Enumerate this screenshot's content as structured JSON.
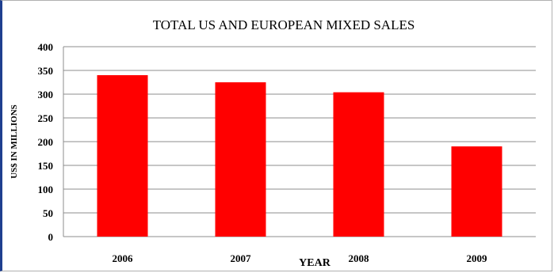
{
  "chart_data": {
    "type": "bar",
    "title": "TOTAL US AND EUROPEAN MIXED SALES",
    "xlabel": "YEAR",
    "ylabel": "US$ IN MILLIONS",
    "categories": [
      "2006",
      "2007",
      "2008",
      "2009"
    ],
    "values": [
      340,
      325,
      304,
      190
    ],
    "ylim": [
      0,
      400
    ],
    "yticks": [
      "0",
      "50",
      "100",
      "150",
      "200",
      "250",
      "300",
      "350",
      "400"
    ],
    "grid": true,
    "legend": "none",
    "bar_color": "#ff0000",
    "grid_color": "#8c8c8c"
  }
}
